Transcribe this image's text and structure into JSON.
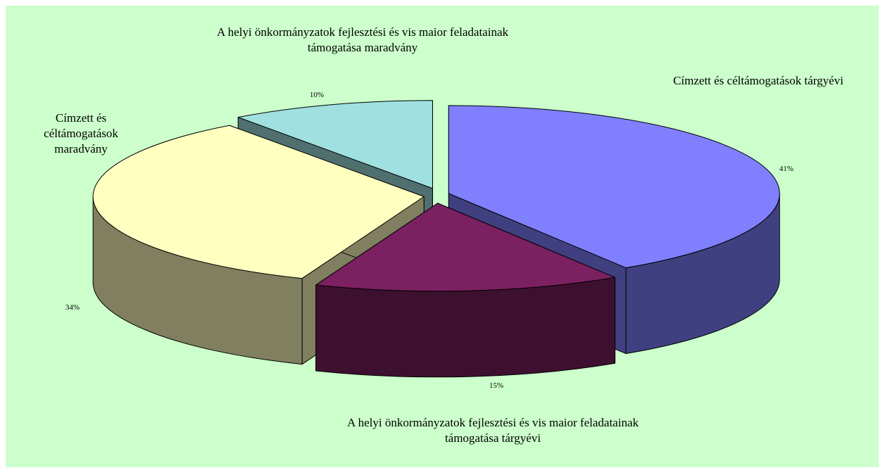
{
  "chart_data": {
    "type": "pie3d",
    "categories": [
      "Címzett és céltámogatások tárgyévi",
      "A helyi önkormányzatok fejlesztési és vis maior feladatainak támogatása tárgyévi",
      "Címzett és céltámogatások maradvány",
      "A helyi önkormányzatok fejlesztési és vis maior feladatainak támogatása maradvány"
    ],
    "values": [
      41,
      15,
      34,
      10
    ],
    "value_labels": [
      "41%",
      "15%",
      "34%",
      "10%"
    ],
    "colors": [
      "#8080ff",
      "#7b2060",
      "#ffffc0",
      "#a0e0e0"
    ]
  }
}
